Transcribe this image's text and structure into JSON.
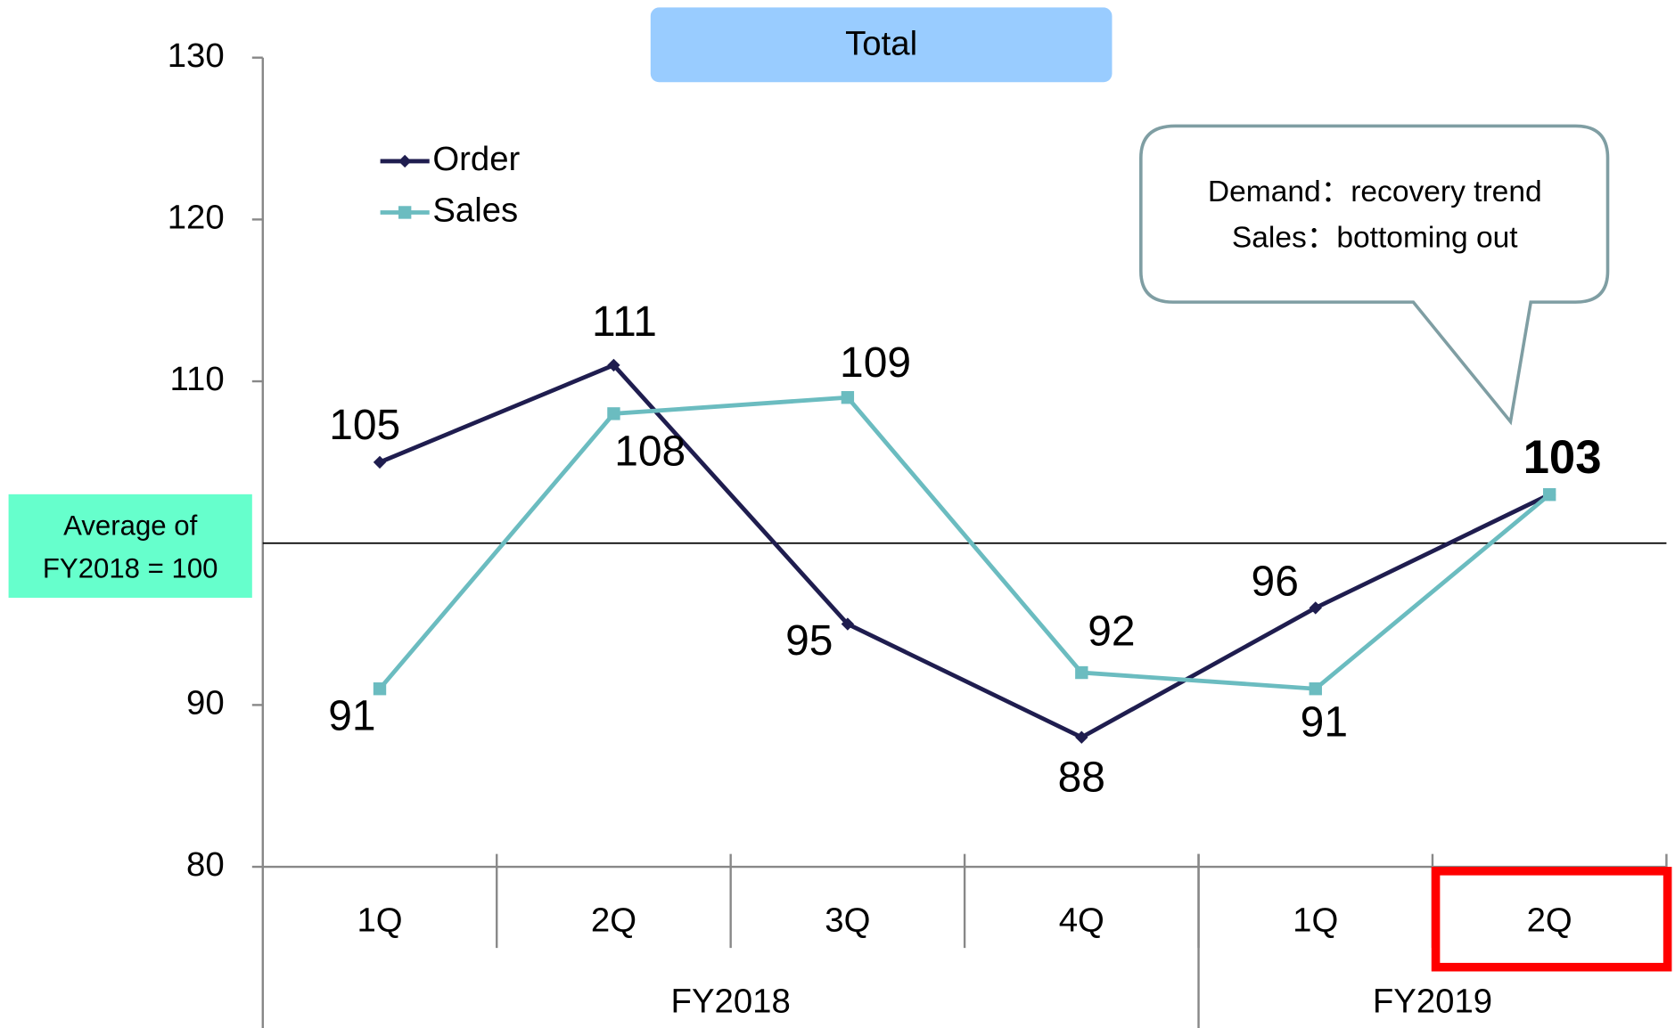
{
  "chart_data": {
    "type": "line",
    "title": "Total",
    "categories": [
      "1Q",
      "2Q",
      "3Q",
      "4Q",
      "1Q",
      "2Q"
    ],
    "category_groups": [
      {
        "label": "FY2018",
        "span": 4
      },
      {
        "label": "FY2019",
        "span": 2
      }
    ],
    "series": [
      {
        "name": "Order",
        "color": "#1f1d4f",
        "marker": "diamond",
        "values": [
          105,
          111,
          95,
          88,
          96,
          103
        ]
      },
      {
        "name": "Sales",
        "color": "#6bbcc0",
        "marker": "square",
        "values": [
          91,
          108,
          109,
          92,
          91,
          103
        ]
      }
    ],
    "ylim": [
      80,
      130
    ],
    "yticks": [
      80,
      90,
      110,
      120,
      130
    ],
    "reference_line": {
      "value": 100,
      "label": "Average of FY2018 = 100"
    },
    "annotation": [
      "Demand：recovery trend",
      "Sales：bottoming out"
    ],
    "highlight_category": 5,
    "legend": "upper left"
  }
}
